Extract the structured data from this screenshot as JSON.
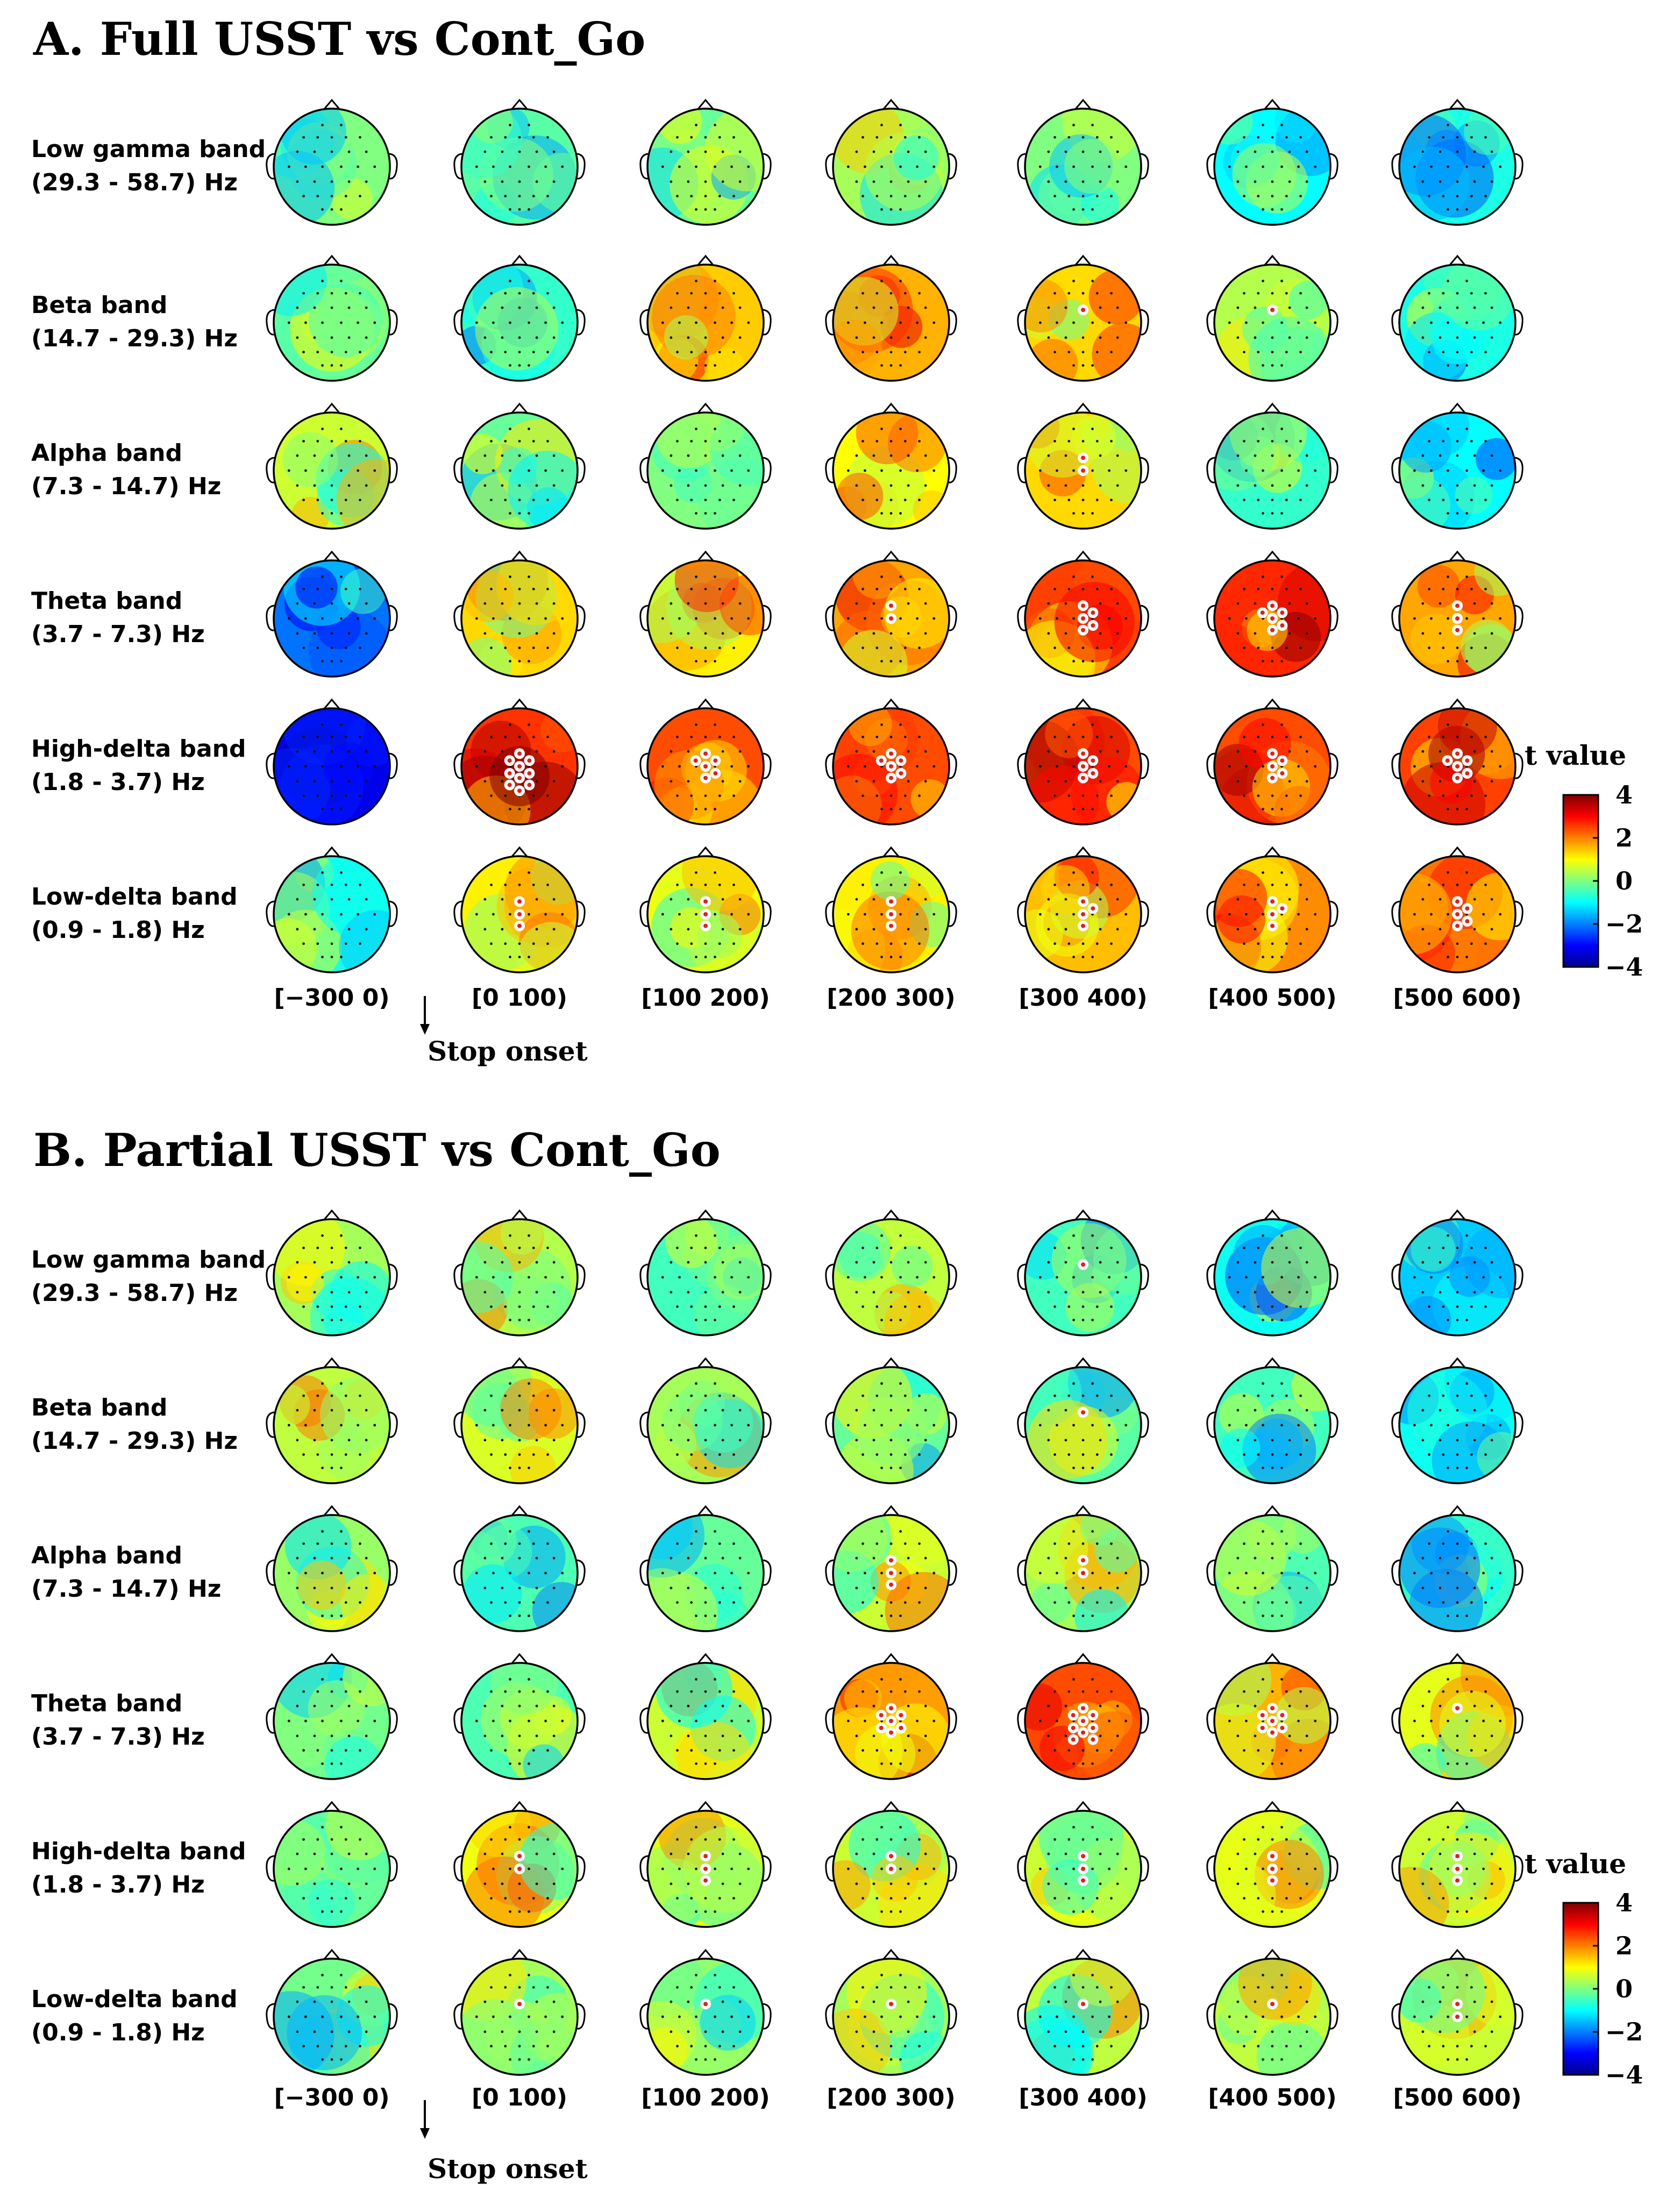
{
  "figure": {
    "colormap_colors": [
      "#00008f",
      "#0000ff",
      "#00ffff",
      "#ffff00",
      "#ff0000",
      "#800000"
    ],
    "head_outline_color": "#000000",
    "significant_marker_color": "#ffffff",
    "panels": [
      {
        "title": "A. Full USST vs Cont_Go",
        "bands": [
          {
            "line1": "Low gamma band",
            "line2": "(29.3 - 58.7) Hz"
          },
          {
            "line1": "Beta band",
            "line2": "(14.7 - 29.3) Hz"
          },
          {
            "line1": "Alpha band",
            "line2": "(7.3 - 14.7) Hz"
          },
          {
            "line1": "Theta band",
            "line2": "(3.7 - 7.3) Hz"
          },
          {
            "line1": "High-delta band",
            "line2": "(1.8 - 3.7) Hz"
          },
          {
            "line1": "Low-delta band",
            "line2": "(0.9 - 1.8) Hz"
          }
        ],
        "time_windows": [
          "[−300 0)",
          "[0 100)",
          "[100 200)",
          "[200 300)",
          "[300 400)",
          "[400 500)",
          "[500 600)"
        ],
        "onset_label": "Stop onset",
        "colorbar": {
          "title": "t value",
          "ticks": [
            "4",
            "2",
            "0",
            "−2",
            "−4"
          ],
          "range": [
            -4,
            4
          ]
        },
        "mean_t": [
          [
            0.0,
            -0.3,
            -0.2,
            0.3,
            0.0,
            -1.0,
            -0.8
          ],
          [
            -0.2,
            -0.6,
            1.4,
            1.6,
            1.3,
            0.4,
            -0.8
          ],
          [
            0.6,
            -0.2,
            0.0,
            1.0,
            1.3,
            -0.6,
            -1.0
          ],
          [
            -2.1,
            1.3,
            1.1,
            1.7,
            2.5,
            2.7,
            1.7
          ],
          [
            -3.2,
            2.6,
            2.4,
            2.4,
            2.4,
            2.4,
            2.5
          ],
          [
            -0.8,
            1.1,
            0.9,
            1.1,
            1.5,
            1.9,
            2.1
          ]
        ],
        "significant_electrodes": [
          [
            0,
            0,
            0,
            0,
            0,
            0,
            0
          ],
          [
            0,
            0,
            0,
            0,
            1,
            1,
            0
          ],
          [
            0,
            0,
            0,
            0,
            2,
            0,
            0
          ],
          [
            0,
            0,
            0,
            2,
            5,
            6,
            3
          ],
          [
            0,
            10,
            6,
            6,
            5,
            5,
            6
          ],
          [
            0,
            3,
            3,
            3,
            4,
            4,
            5
          ]
        ]
      },
      {
        "title": "B. Partial USST vs Cont_Go",
        "bands": [
          {
            "line1": "Low gamma band",
            "line2": "(29.3 - 58.7) Hz"
          },
          {
            "line1": "Beta band",
            "line2": "(14.7 - 29.3) Hz"
          },
          {
            "line1": "Alpha band",
            "line2": "(7.3 - 14.7) Hz"
          },
          {
            "line1": "Theta band",
            "line2": "(3.7 - 7.3) Hz"
          },
          {
            "line1": "High-delta band",
            "line2": "(1.8 - 3.7) Hz"
          },
          {
            "line1": "Low-delta band",
            "line2": "(0.9 - 1.8) Hz"
          }
        ],
        "time_windows": [
          "[−300 0)",
          "[0 100)",
          "[100 200)",
          "[200 300)",
          "[300 400)",
          "[400 500)",
          "[500 600)"
        ],
        "onset_label": "Stop onset",
        "colorbar": {
          "title": "t value",
          "ticks": [
            "4",
            "2",
            "0",
            "−2",
            "−4"
          ],
          "range": [
            -4,
            4
          ]
        },
        "mean_t": [
          [
            0.3,
            0.4,
            -0.5,
            0.5,
            -0.5,
            -0.9,
            -1.4
          ],
          [
            0.5,
            0.7,
            0.3,
            -0.2,
            -0.3,
            -0.5,
            -0.9
          ],
          [
            0.2,
            -0.4,
            -0.2,
            0.6,
            0.3,
            -0.4,
            -0.6
          ],
          [
            -0.1,
            -0.4,
            0.6,
            1.8,
            2.4,
            1.6,
            0.8
          ],
          [
            -0.2,
            0.9,
            0.8,
            0.6,
            0.6,
            0.8,
            0.6
          ],
          [
            -0.1,
            0.3,
            0.2,
            0.3,
            0.5,
            0.5,
            0.6
          ]
        ],
        "significant_electrodes": [
          [
            0,
            0,
            0,
            0,
            1,
            0,
            0
          ],
          [
            0,
            0,
            0,
            0,
            1,
            0,
            0
          ],
          [
            0,
            0,
            0,
            3,
            2,
            0,
            0
          ],
          [
            0,
            0,
            0,
            7,
            9,
            7,
            1
          ],
          [
            0,
            2,
            3,
            2,
            3,
            3,
            3
          ],
          [
            0,
            1,
            1,
            1,
            1,
            1,
            2
          ]
        ]
      }
    ]
  }
}
